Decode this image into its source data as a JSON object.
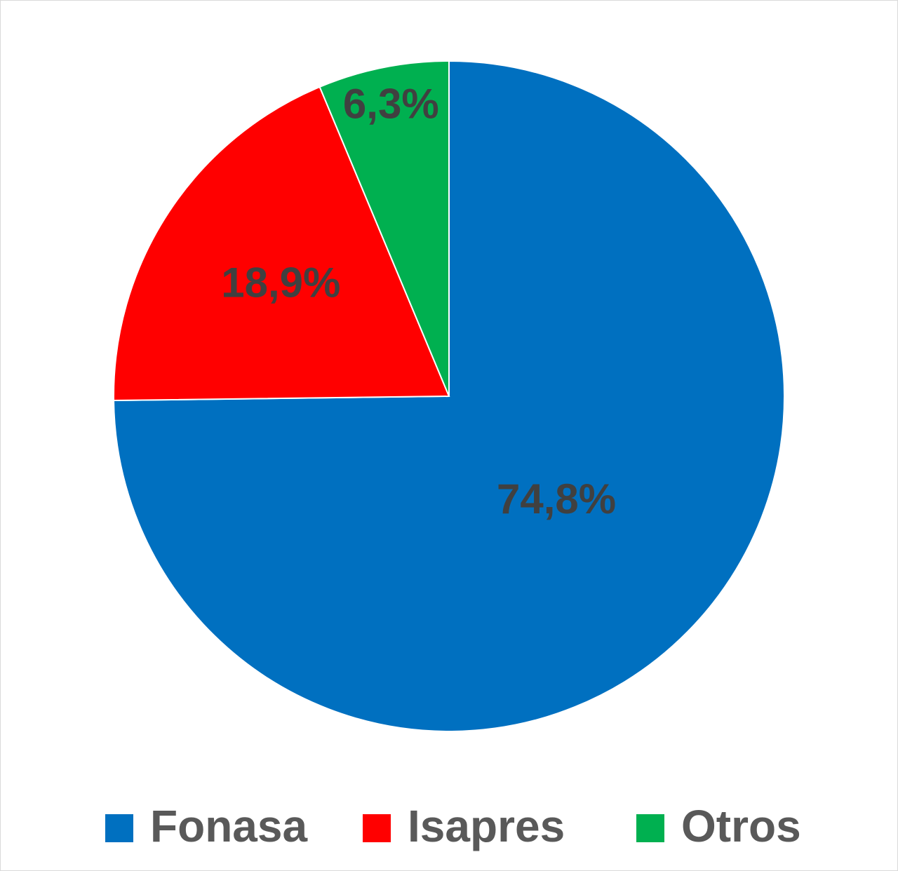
{
  "chart_data": {
    "type": "pie",
    "categories": [
      "Fonasa",
      "Isapres",
      "Otros"
    ],
    "values": [
      74.8,
      18.9,
      6.3
    ],
    "value_labels": [
      "74,8%",
      "18,9%",
      "6,3%"
    ],
    "colors": [
      "#0070c0",
      "#ff0000",
      "#00b050"
    ],
    "legend": "bottom"
  }
}
